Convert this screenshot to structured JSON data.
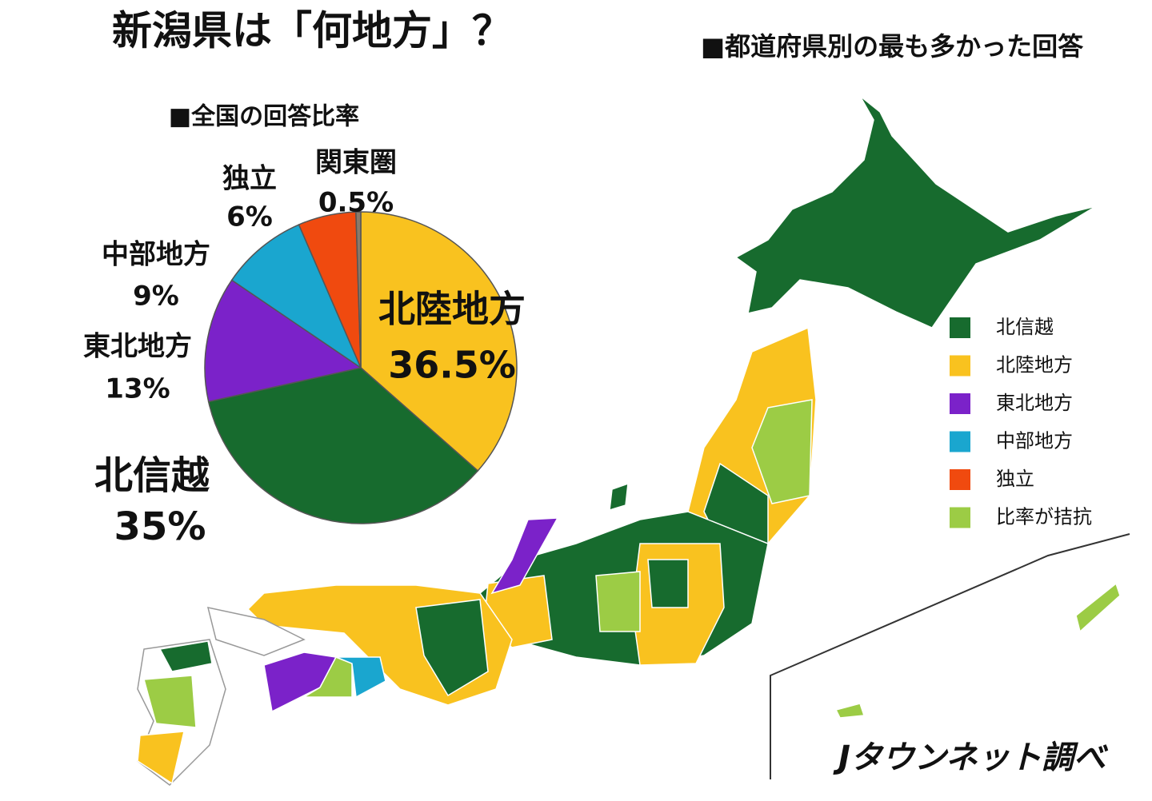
{
  "title": "新潟県は「何地方」？",
  "map": {
    "title": "■都道府県別の最も多かった回答",
    "legend": [
      {
        "label": "北信越",
        "color": "#176b2e"
      },
      {
        "label": "北陸地方",
        "color": "#f9c21f"
      },
      {
        "label": "東北地方",
        "color": "#7b22c9"
      },
      {
        "label": "中部地方",
        "color": "#1aa6cf"
      },
      {
        "label": "独立",
        "color": "#f04a0f"
      },
      {
        "label": "比率が拮抗",
        "color": "#9ccc45"
      }
    ]
  },
  "source": "Jタウンネット調べ",
  "chart_data": {
    "type": "pie",
    "title": "■全国の回答比率",
    "categories": [
      "北陸地方",
      "北信越",
      "東北地方",
      "中部地方",
      "独立",
      "関東圏"
    ],
    "values": [
      36.5,
      35,
      13,
      9,
      6,
      0.5
    ],
    "value_labels": [
      "36.5%",
      "35%",
      "13%",
      "9%",
      "6%",
      "0.5%"
    ],
    "colors": [
      "#f9c21f",
      "#176b2e",
      "#7b22c9",
      "#1aa6cf",
      "#f04a0f",
      "#8a7a6a"
    ]
  }
}
